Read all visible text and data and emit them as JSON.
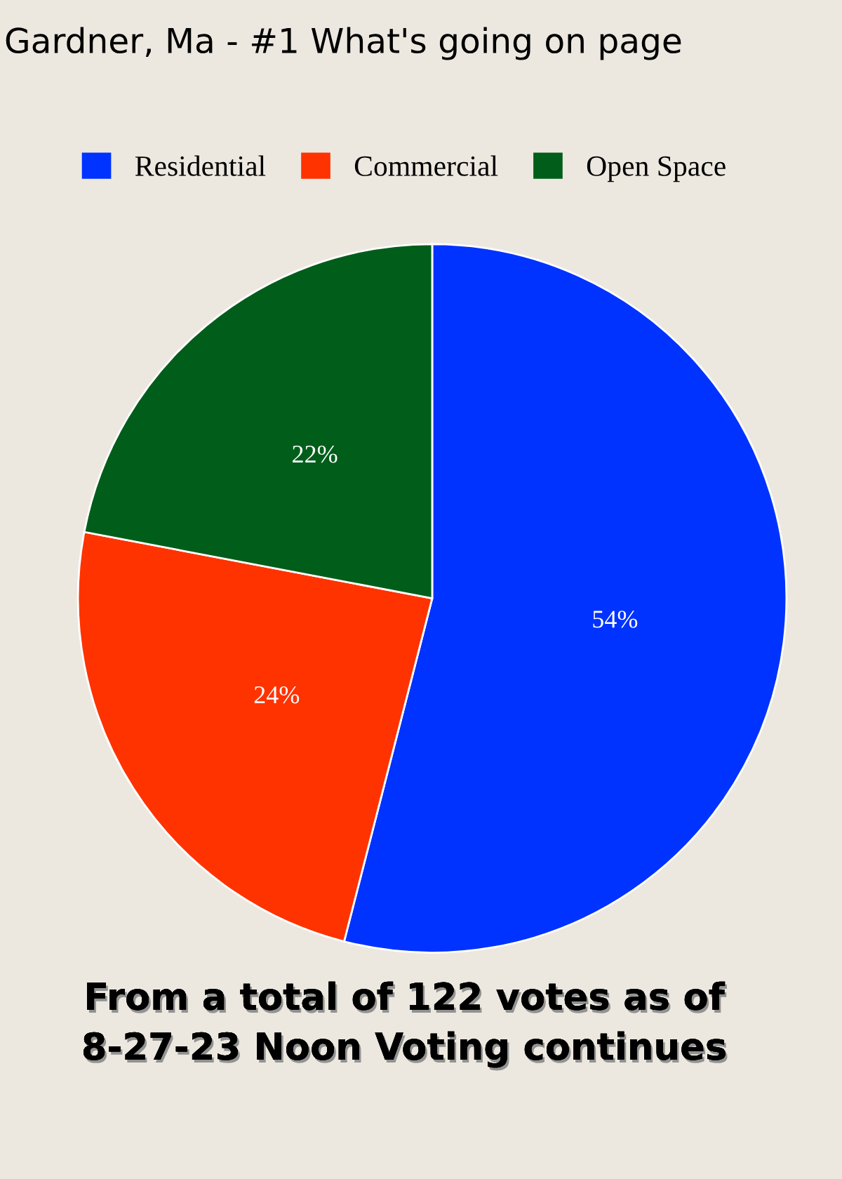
{
  "chart_data": {
    "type": "pie",
    "title": "Gardner, Ma - #1 What's going on page",
    "categories": [
      "Residential",
      "Commercial",
      "Open Space"
    ],
    "values": [
      54,
      24,
      22
    ],
    "colors": [
      "#0033ff",
      "#ff3300",
      "#005e1a"
    ],
    "value_labels": [
      "54%",
      "24%",
      "22%"
    ],
    "legend": "top",
    "annotations": [
      "From a total of 122 votes as of\n8-27-23 Noon Voting continues"
    ]
  }
}
